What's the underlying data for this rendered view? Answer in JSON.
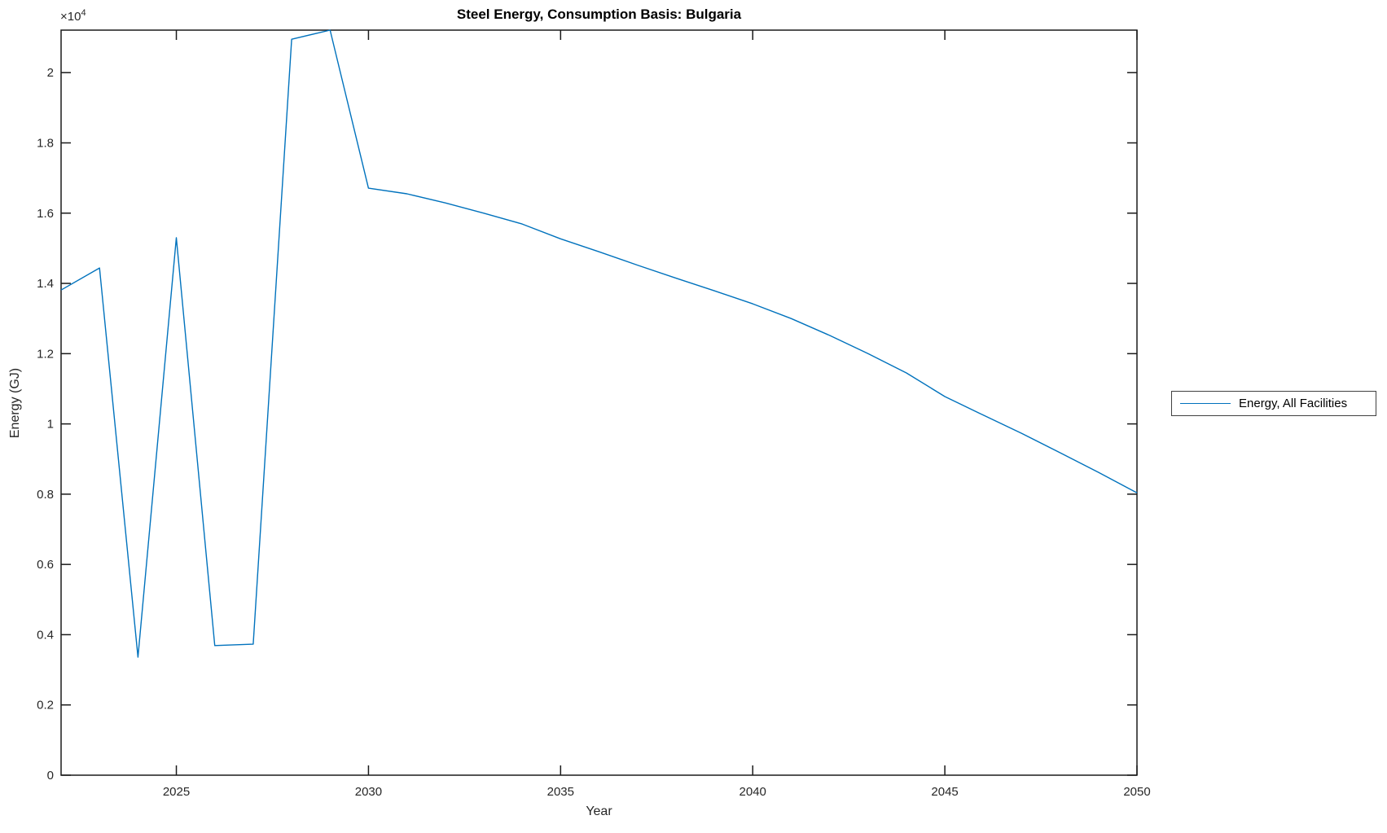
{
  "chart_data": {
    "type": "line",
    "title": "Steel Energy, Consumption Basis: Bulgaria",
    "xlabel": "Year",
    "ylabel": "Energy (GJ)",
    "y_multiplier": {
      "base": "×10",
      "exp": "4"
    },
    "xlim": [
      2022,
      2050
    ],
    "ylim": [
      0,
      21210
    ],
    "x_ticks": [
      2025,
      2030,
      2035,
      2040,
      2045,
      2050
    ],
    "y_ticks": [
      0,
      2000,
      4000,
      6000,
      8000,
      10000,
      12000,
      14000,
      16000,
      18000,
      20000
    ],
    "y_tick_labels": [
      "0",
      "0.2",
      "0.4",
      "0.6",
      "0.8",
      "1",
      "1.2",
      "1.4",
      "1.6",
      "1.8",
      "2"
    ],
    "grid": false,
    "line_color": "#0072BD",
    "axis_color": "#1a1a1a",
    "legend": {
      "position": "outside-right",
      "entries": [
        {
          "label": "Energy, All Facilities",
          "color": "#0072BD"
        }
      ]
    },
    "series": [
      {
        "name": "Energy, All Facilities",
        "color": "#0072BD",
        "x": [
          2022,
          2023,
          2024,
          2025,
          2026,
          2027,
          2028,
          2029,
          2030,
          2031,
          2032,
          2033,
          2034,
          2035,
          2036,
          2037,
          2038,
          2039,
          2040,
          2041,
          2042,
          2043,
          2044,
          2045,
          2046,
          2047,
          2048,
          2049,
          2050
        ],
        "values": [
          13810,
          14440,
          3360,
          15300,
          3690,
          3730,
          20950,
          21210,
          16710,
          16550,
          16290,
          16000,
          15690,
          15270,
          14900,
          14520,
          14150,
          13790,
          13420,
          13000,
          12520,
          12000,
          11450,
          10780,
          10250,
          9730,
          9180,
          8620,
          8040
        ]
      }
    ]
  }
}
